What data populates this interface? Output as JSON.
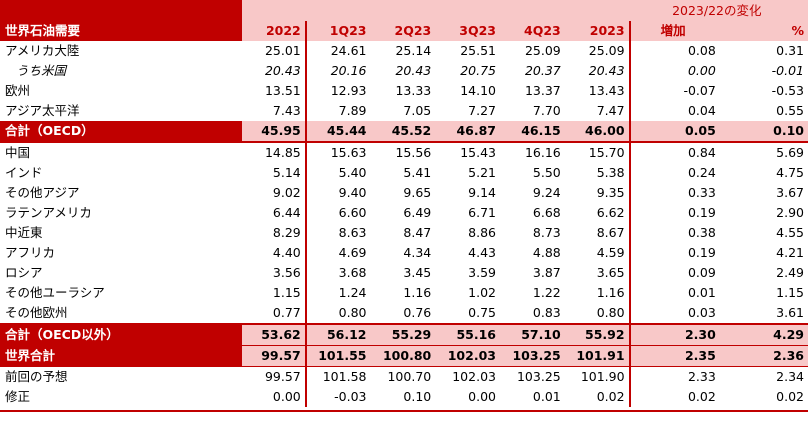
{
  "header": {
    "title": "世界石油需要",
    "periods": [
      "2022",
      "1Q23",
      "2Q23",
      "3Q23",
      "4Q23",
      "2023"
    ],
    "change_title": "2023/22の変化",
    "change_cols": [
      "増加",
      "%"
    ]
  },
  "rows": [
    {
      "label": "アメリカ大陸",
      "values": [
        "25.01",
        "24.61",
        "25.14",
        "25.51",
        "25.09",
        "25.09"
      ],
      "change": [
        "0.08",
        "0.31"
      ]
    },
    {
      "label": "うち米国",
      "values": [
        "20.43",
        "20.16",
        "20.43",
        "20.75",
        "20.37",
        "20.43"
      ],
      "change": [
        "0.00",
        "-0.01"
      ]
    },
    {
      "label": "欧州",
      "values": [
        "13.51",
        "12.93",
        "13.33",
        "14.10",
        "13.37",
        "13.43"
      ],
      "change": [
        "-0.07",
        "-0.53"
      ]
    },
    {
      "label": "アジア太平洋",
      "values": [
        "7.43",
        "7.89",
        "7.05",
        "7.27",
        "7.70",
        "7.47"
      ],
      "change": [
        "0.04",
        "0.55"
      ]
    },
    {
      "label": "合計（OECD）",
      "values": [
        "45.95",
        "45.44",
        "45.52",
        "46.87",
        "46.15",
        "46.00"
      ],
      "change": [
        "0.05",
        "0.10"
      ]
    },
    {
      "label": "中国",
      "values": [
        "14.85",
        "15.63",
        "15.56",
        "15.43",
        "16.16",
        "15.70"
      ],
      "change": [
        "0.84",
        "5.69"
      ]
    },
    {
      "label": "インド",
      "values": [
        "5.14",
        "5.40",
        "5.41",
        "5.21",
        "5.50",
        "5.38"
      ],
      "change": [
        "0.24",
        "4.75"
      ]
    },
    {
      "label": "その他アジア",
      "values": [
        "9.02",
        "9.40",
        "9.65",
        "9.14",
        "9.24",
        "9.35"
      ],
      "change": [
        "0.33",
        "3.67"
      ]
    },
    {
      "label": "ラテンアメリカ",
      "values": [
        "6.44",
        "6.60",
        "6.49",
        "6.71",
        "6.68",
        "6.62"
      ],
      "change": [
        "0.19",
        "2.90"
      ]
    },
    {
      "label": "中近東",
      "values": [
        "8.29",
        "8.63",
        "8.47",
        "8.86",
        "8.73",
        "8.67"
      ],
      "change": [
        "0.38",
        "4.55"
      ]
    },
    {
      "label": "アフリカ",
      "values": [
        "4.40",
        "4.69",
        "4.34",
        "4.43",
        "4.88",
        "4.59"
      ],
      "change": [
        "0.19",
        "4.21"
      ]
    },
    {
      "label": "ロシア",
      "values": [
        "3.56",
        "3.68",
        "3.45",
        "3.59",
        "3.87",
        "3.65"
      ],
      "change": [
        "0.09",
        "2.49"
      ]
    },
    {
      "label": "その他ユーラシア",
      "values": [
        "1.15",
        "1.24",
        "1.16",
        "1.02",
        "1.22",
        "1.16"
      ],
      "change": [
        "0.01",
        "1.15"
      ]
    },
    {
      "label": "その他欧州",
      "values": [
        "0.77",
        "0.80",
        "0.76",
        "0.75",
        "0.83",
        "0.80"
      ],
      "change": [
        "0.03",
        "3.61"
      ]
    },
    {
      "label": "合計（OECD以外）",
      "values": [
        "53.62",
        "56.12",
        "55.29",
        "55.16",
        "57.10",
        "55.92"
      ],
      "change": [
        "2.30",
        "4.29"
      ]
    },
    {
      "label": "世界合計",
      "values": [
        "99.57",
        "101.55",
        "100.80",
        "102.03",
        "103.25",
        "101.91"
      ],
      "change": [
        "2.35",
        "2.36"
      ]
    },
    {
      "label": "前回の予想",
      "values": [
        "99.57",
        "101.58",
        "100.70",
        "102.03",
        "103.25",
        "101.90"
      ],
      "change": [
        "2.33",
        "2.34"
      ]
    },
    {
      "label": "修正",
      "values": [
        "0.00",
        "-0.03",
        "0.10",
        "0.00",
        "0.01",
        "0.02"
      ],
      "change": [
        "0.02",
        "0.02"
      ]
    }
  ],
  "colors": {
    "accent": "#c00000",
    "highlight": "#f8c8c8"
  }
}
